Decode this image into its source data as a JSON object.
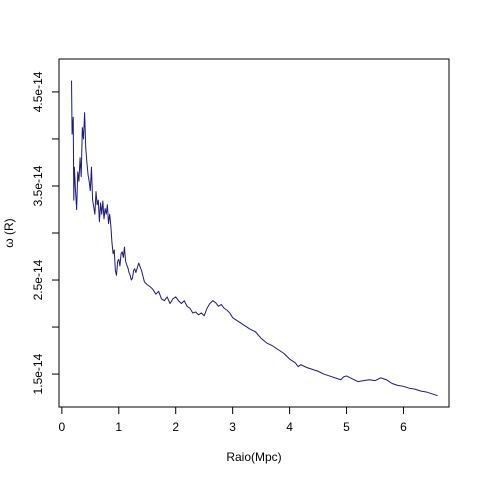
{
  "chart_data": {
    "type": "line",
    "xlabel": "Raio(Mpc)",
    "ylabel": "ω (R)",
    "xlim": [
      -0.05,
      6.8
    ],
    "ylim": [
      1.15e-14,
      4.85e-14
    ],
    "x_ticks": [
      0,
      1,
      2,
      3,
      4,
      5,
      6
    ],
    "x_tick_labels": [
      "0",
      "1",
      "2",
      "3",
      "4",
      "5",
      "6"
    ],
    "y_ticks": [
      1.5e-14,
      2.5e-14,
      3.5e-14,
      4.5e-14
    ],
    "y_minor_ticks": [
      2e-14,
      3e-14,
      4e-14
    ],
    "y_tick_labels": [
      "1.5e-14",
      "2.5e-14",
      "3.5e-14",
      "4.5e-14"
    ],
    "grid": false,
    "series_color": "#1a1a80",
    "series": [
      {
        "x": [
          0.17,
          0.18,
          0.2,
          0.21,
          0.22,
          0.24,
          0.26,
          0.28,
          0.3,
          0.32,
          0.34,
          0.36,
          0.38,
          0.4,
          0.42,
          0.44,
          0.46,
          0.48,
          0.5,
          0.52,
          0.54,
          0.56,
          0.58,
          0.6,
          0.62,
          0.64,
          0.66,
          0.68,
          0.7,
          0.72,
          0.74,
          0.76,
          0.78,
          0.8,
          0.82,
          0.84,
          0.86,
          0.88,
          0.9,
          0.92,
          0.94,
          0.96,
          0.98,
          1.0,
          1.02,
          1.04,
          1.06,
          1.08,
          1.1,
          1.12,
          1.14,
          1.16,
          1.18,
          1.2,
          1.22,
          1.24,
          1.26,
          1.28,
          1.3,
          1.32,
          1.35,
          1.4,
          1.45,
          1.5,
          1.55,
          1.6,
          1.65,
          1.7,
          1.75,
          1.8,
          1.85,
          1.9,
          1.95,
          2.0,
          2.05,
          2.1,
          2.15,
          2.2,
          2.25,
          2.3,
          2.35,
          2.4,
          2.45,
          2.5,
          2.55,
          2.6,
          2.65,
          2.7,
          2.75,
          2.8,
          2.85,
          2.9,
          2.95,
          3.0,
          3.1,
          3.2,
          3.3,
          3.4,
          3.5,
          3.6,
          3.7,
          3.8,
          3.9,
          4.0,
          4.1,
          4.15,
          4.2,
          4.3,
          4.4,
          4.5,
          4.6,
          4.7,
          4.8,
          4.9,
          4.95,
          5.0,
          5.1,
          5.2,
          5.3,
          5.4,
          5.5,
          5.6,
          5.7,
          5.8,
          5.9,
          6.0,
          6.1,
          6.2,
          6.3,
          6.4,
          6.5,
          6.6
        ],
        "y": [
          4.62e-14,
          4.05e-14,
          4.23e-14,
          3.35e-14,
          3.7e-14,
          3.45e-14,
          3.25e-14,
          3.65e-14,
          3.55e-14,
          3.8e-14,
          3.6e-14,
          4.12e-14,
          4e-14,
          4.28e-14,
          3.9e-14,
          3.75e-14,
          3.62e-14,
          3.55e-14,
          3.45e-14,
          3.7e-14,
          3.35e-14,
          3.28e-14,
          3.2e-14,
          3.44e-14,
          3.3e-14,
          3.35e-14,
          3.12e-14,
          3.32e-14,
          3.2e-14,
          3.34e-14,
          3.15e-14,
          3.26e-14,
          3.2e-14,
          3.3e-14,
          3.1e-14,
          3.2e-14,
          3.08e-14,
          2.9e-14,
          2.78e-14,
          2.82e-14,
          2.6e-14,
          2.55e-14,
          2.7e-14,
          2.72e-14,
          2.65e-14,
          2.78e-14,
          2.8e-14,
          2.74e-14,
          2.85e-14,
          2.7e-14,
          2.66e-14,
          2.63e-14,
          2.58e-14,
          2.55e-14,
          2.5e-14,
          2.52e-14,
          2.6e-14,
          2.62e-14,
          2.58e-14,
          2.62e-14,
          2.68e-14,
          2.6e-14,
          2.48e-14,
          2.45e-14,
          2.43e-14,
          2.4e-14,
          2.35e-14,
          2.38e-14,
          2.3e-14,
          2.28e-14,
          2.32e-14,
          2.25e-14,
          2.3e-14,
          2.32e-14,
          2.28e-14,
          2.25e-14,
          2.28e-14,
          2.22e-14,
          2.2e-14,
          2.15e-14,
          2.16e-14,
          2.13e-14,
          2.15e-14,
          2.12e-14,
          2.2e-14,
          2.25e-14,
          2.28e-14,
          2.26e-14,
          2.22e-14,
          2.24e-14,
          2.2e-14,
          2.18e-14,
          2.15e-14,
          2.1e-14,
          2.06e-14,
          2.02e-14,
          1.98e-14,
          1.95e-14,
          1.88e-14,
          1.83e-14,
          1.8e-14,
          1.76e-14,
          1.72e-14,
          1.66e-14,
          1.62e-14,
          1.58e-14,
          1.6e-14,
          1.57e-14,
          1.55e-14,
          1.53e-14,
          1.5e-14,
          1.48e-14,
          1.46e-14,
          1.44e-14,
          1.47e-14,
          1.48e-14,
          1.45e-14,
          1.42e-14,
          1.43e-14,
          1.44e-14,
          1.43e-14,
          1.46e-14,
          1.44e-14,
          1.4e-14,
          1.38e-14,
          1.37e-14,
          1.35e-14,
          1.34e-14,
          1.32e-14,
          1.31e-14,
          1.29e-14,
          1.27e-14
        ]
      }
    ]
  }
}
